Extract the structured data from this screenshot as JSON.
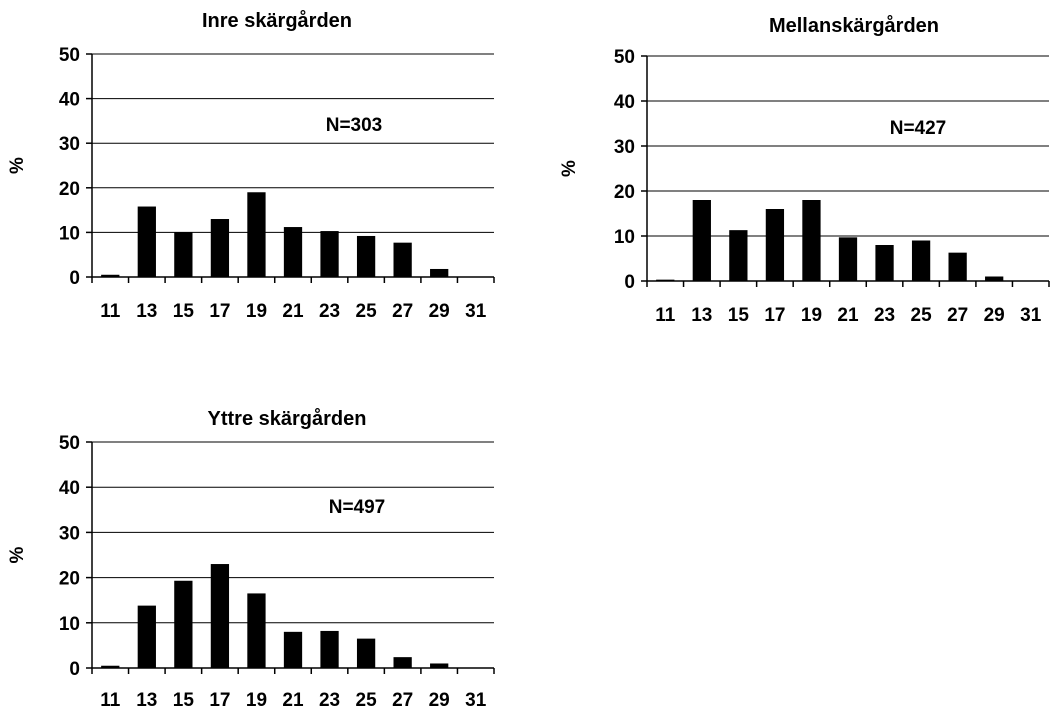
{
  "chart_data": [
    {
      "type": "bar",
      "title": "Inre skärgården",
      "ylabel": "%",
      "xlabel": "",
      "annotation": "N=303",
      "categories": [
        "11",
        "13",
        "15",
        "17",
        "19",
        "21",
        "23",
        "25",
        "27",
        "29",
        "31"
      ],
      "values": [
        0.5,
        15.8,
        10,
        13,
        19,
        11.2,
        10.3,
        9.2,
        7.7,
        1.8,
        0
      ],
      "yticks": [
        "0",
        "10",
        "20",
        "30",
        "40",
        "50"
      ],
      "ylim": [
        0,
        50
      ],
      "grid": true
    },
    {
      "type": "bar",
      "title": "Mellanskärgården",
      "ylabel": "%",
      "xlabel": "",
      "annotation": "N=427",
      "categories": [
        "11",
        "13",
        "15",
        "17",
        "19",
        "21",
        "23",
        "25",
        "27",
        "29",
        "31"
      ],
      "values": [
        0.3,
        18,
        11.3,
        16,
        18,
        9.7,
        8,
        9,
        6.3,
        1,
        0
      ],
      "yticks": [
        "0",
        "10",
        "20",
        "30",
        "40",
        "50"
      ],
      "ylim": [
        0,
        50
      ],
      "grid": true
    },
    {
      "type": "bar",
      "title": "Yttre skärgården",
      "ylabel": "%",
      "xlabel": "",
      "annotation": "N=497",
      "categories": [
        "11",
        "13",
        "15",
        "17",
        "19",
        "21",
        "23",
        "25",
        "27",
        "29",
        "31"
      ],
      "values": [
        0.5,
        13.8,
        19.3,
        23,
        16.5,
        8,
        8.2,
        6.5,
        2.4,
        1,
        0
      ],
      "yticks": [
        "0",
        "10",
        "20",
        "30",
        "40",
        "50"
      ],
      "ylim": [
        0,
        50
      ],
      "grid": true
    }
  ]
}
